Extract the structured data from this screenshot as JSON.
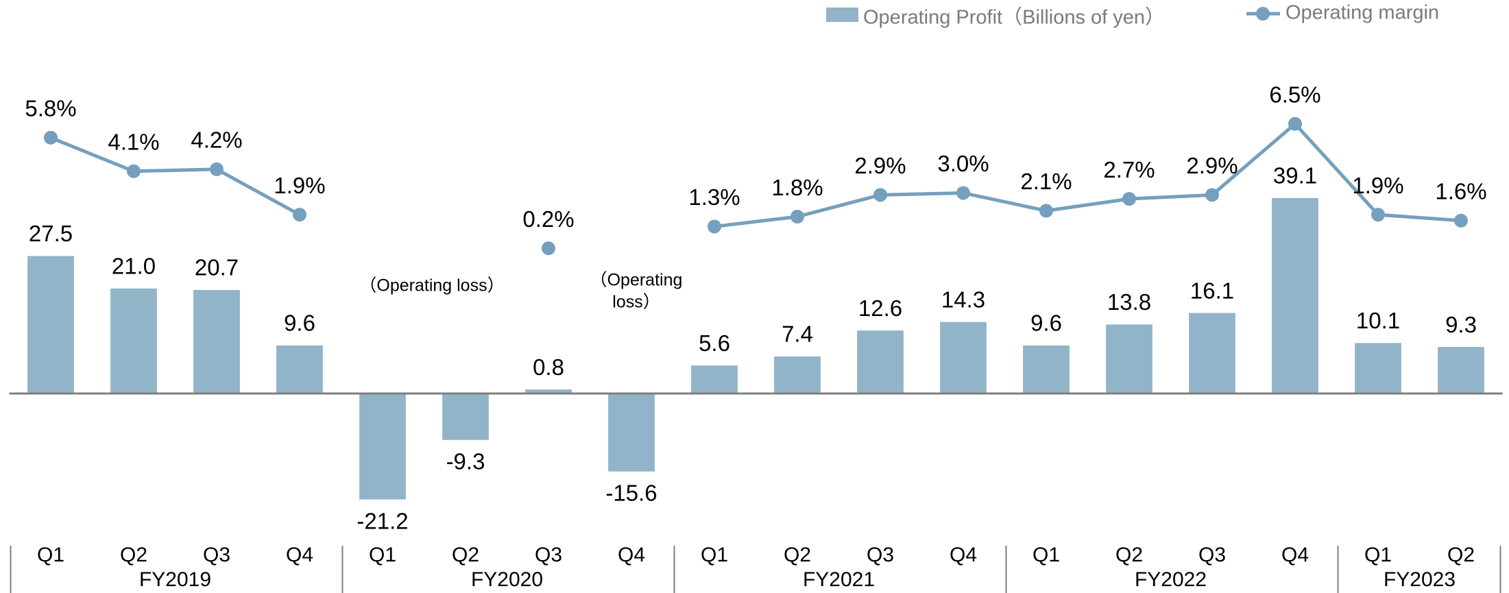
{
  "chart_data": {
    "type": "bar_line",
    "categories": [
      "Q1",
      "Q2",
      "Q3",
      "Q4",
      "Q1",
      "Q2",
      "Q3",
      "Q4",
      "Q1",
      "Q2",
      "Q3",
      "Q4",
      "Q1",
      "Q2",
      "Q3",
      "Q4",
      "Q1",
      "Q2"
    ],
    "group_labels": [
      "FY2019",
      "FY2020",
      "FY2021",
      "FY2022",
      "FY2023"
    ],
    "series": [
      {
        "name": "Operating Profit（Billions of yen）",
        "type": "bar",
        "color": "#91b4c9",
        "values": [
          27.5,
          21.0,
          20.7,
          9.6,
          -21.2,
          -9.3,
          0.8,
          -15.6,
          5.6,
          7.4,
          12.6,
          14.3,
          9.6,
          13.8,
          16.1,
          39.1,
          10.1,
          9.3
        ],
        "value_labels": [
          "27.5",
          "21.0",
          "20.7",
          "9.6",
          "-21.2",
          "-9.3",
          "0.8",
          "-15.6",
          "5.6",
          "7.4",
          "12.6",
          "14.3",
          "9.6",
          "13.8",
          "16.1",
          "39.1",
          "10.1",
          "9.3"
        ]
      },
      {
        "name": "Operating margin",
        "type": "line",
        "axis": "y2",
        "color": "#74a0bd",
        "values": [
          5.8,
          4.1,
          4.2,
          1.9,
          null,
          null,
          0.2,
          null,
          1.3,
          1.8,
          2.9,
          3.0,
          2.1,
          2.7,
          2.9,
          6.5,
          1.9,
          1.6
        ],
        "value_labels": [
          "5.8%",
          "4.1%",
          "4.2%",
          "1.9%",
          null,
          null,
          "0.2%",
          null,
          "1.3%",
          "1.8%",
          "2.9%",
          "3.0%",
          "2.1%",
          "2.7%",
          "2.9%",
          "6.5%",
          "1.9%",
          "1.6%"
        ]
      }
    ],
    "ylim": [
      -31,
      65
    ],
    "y2lim": [
      -15,
      9.3
    ],
    "annotations": [
      "（Operating loss）",
      "（Operating",
      "loss）"
    ]
  }
}
